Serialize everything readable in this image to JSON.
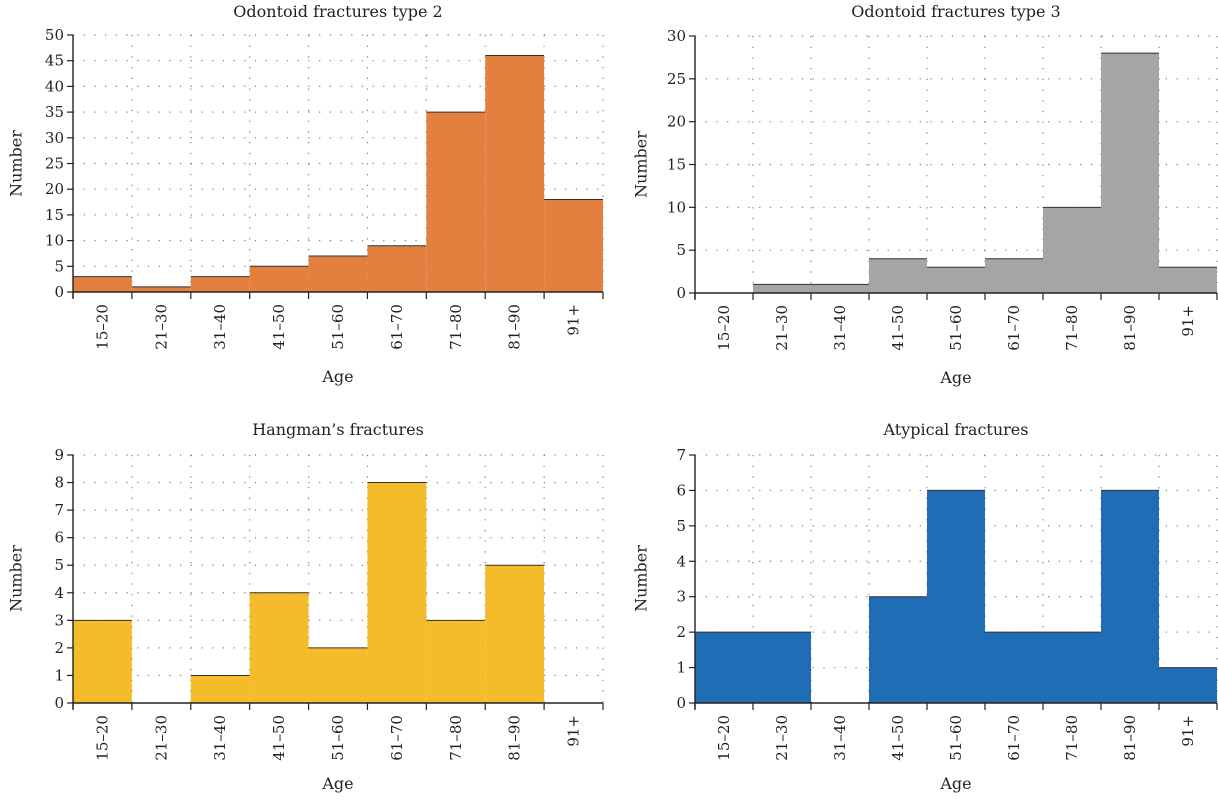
{
  "chart_data": [
    {
      "type": "bar",
      "title": "Odontoid fractures type 2",
      "xlabel": "Age",
      "ylabel": "Number",
      "categories": [
        "15–20",
        "21–30",
        "31–40",
        "41–50",
        "51–60",
        "61–70",
        "71–80",
        "81–90",
        "91+"
      ],
      "values": [
        3,
        1,
        3,
        5,
        7,
        9,
        35,
        46,
        18
      ],
      "ylim": [
        0,
        50
      ],
      "yticks": [
        0,
        5,
        10,
        15,
        20,
        25,
        30,
        35,
        40,
        45,
        50
      ],
      "color": "#e38040",
      "grid": true
    },
    {
      "type": "bar",
      "title": "Odontoid fractures type 3",
      "xlabel": "Age",
      "ylabel": "Number",
      "categories": [
        "15–20",
        "21–30",
        "31–40",
        "41–50",
        "51–60",
        "61–70",
        "71–80",
        "81–90",
        "91+"
      ],
      "values": [
        0,
        1,
        1,
        4,
        3,
        4,
        10,
        28,
        3
      ],
      "ylim": [
        0,
        30
      ],
      "yticks": [
        0,
        5,
        10,
        15,
        20,
        25,
        30
      ],
      "color": "#a5a5a7",
      "grid": true
    },
    {
      "type": "bar",
      "title": "Hangman’s fractures",
      "xlabel": "Age",
      "ylabel": "Number",
      "categories": [
        "15–20",
        "21–30",
        "31–40",
        "41–50",
        "51–60",
        "61–70",
        "71–80",
        "81–90",
        "91+"
      ],
      "values": [
        3,
        0,
        1,
        4,
        2,
        8,
        3,
        5,
        0
      ],
      "ylim": [
        0,
        9
      ],
      "yticks": [
        0,
        1,
        2,
        3,
        4,
        5,
        6,
        7,
        8,
        9
      ],
      "color": "#f4bb2a",
      "grid": true
    },
    {
      "type": "bar",
      "title": "Atypical fractures",
      "xlabel": "Age",
      "ylabel": "Number",
      "categories": [
        "15–20",
        "21–30",
        "31–40",
        "41–50",
        "51–60",
        "61–70",
        "71–80",
        "81–90",
        "91+"
      ],
      "values": [
        2,
        2,
        0,
        3,
        6,
        2,
        2,
        6,
        1
      ],
      "ylim": [
        0,
        7
      ],
      "yticks": [
        0,
        1,
        2,
        3,
        4,
        5,
        6,
        7
      ],
      "color": "#1f6db5",
      "grid": true
    }
  ]
}
